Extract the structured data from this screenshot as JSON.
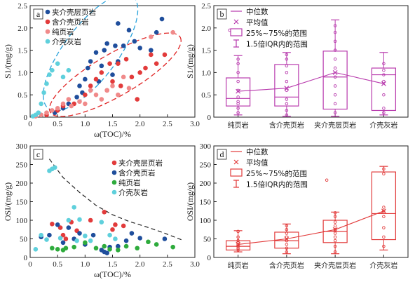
{
  "chart_data": [
    {
      "id": "a",
      "type": "scatter",
      "panel_label": "a",
      "xlabel": "ω(TOC)/%",
      "ylabel": "S1/(mg/g)",
      "xlim": [
        0,
        3.0
      ],
      "ylim": [
        0,
        2.5
      ],
      "xticks": [
        "0",
        "0.5",
        "1.0",
        "1.5",
        "2.0",
        "2.5",
        "3.0"
      ],
      "yticks": [
        "0",
        "0.5",
        "1.0",
        "1.5",
        "2.0",
        "2.5"
      ],
      "legend_position": "top-left",
      "series": [
        {
          "name": "夹介壳层页岩",
          "color": "#1f4e9c",
          "points": [
            [
              0.2,
              0.05
            ],
            [
              0.45,
              0.1
            ],
            [
              0.6,
              0.2
            ],
            [
              0.7,
              0.3
            ],
            [
              0.85,
              0.45
            ],
            [
              0.9,
              0.7
            ],
            [
              1.0,
              0.85
            ],
            [
              1.05,
              1.1
            ],
            [
              1.1,
              1.25
            ],
            [
              1.2,
              1.45
            ],
            [
              1.3,
              1.15
            ],
            [
              1.35,
              1.5
            ],
            [
              1.4,
              1.65
            ],
            [
              1.5,
              0.95
            ],
            [
              1.55,
              1.6
            ],
            [
              1.6,
              1.25
            ],
            [
              1.7,
              1.6
            ],
            [
              1.8,
              1.95
            ],
            [
              1.9,
              1.7
            ],
            [
              2.0,
              1.55
            ],
            [
              2.2,
              1.5
            ],
            [
              2.3,
              1.9
            ],
            [
              2.4,
              2.2
            ],
            [
              1.6,
              2.1
            ],
            [
              1.25,
              0.8
            ],
            [
              0.95,
              0.55
            ]
          ]
        },
        {
          "name": "含介壳页岩",
          "color": "#e23b3b",
          "points": [
            [
              0.3,
              0.05
            ],
            [
              0.5,
              0.15
            ],
            [
              0.6,
              0.25
            ],
            [
              0.8,
              0.3
            ],
            [
              1.0,
              0.5
            ],
            [
              1.1,
              0.7
            ],
            [
              1.2,
              0.85
            ],
            [
              1.3,
              1.0
            ],
            [
              1.45,
              1.2
            ],
            [
              1.5,
              0.8
            ],
            [
              1.6,
              1.2
            ],
            [
              1.75,
              1.3
            ],
            [
              1.85,
              0.9
            ],
            [
              2.0,
              1.0
            ],
            [
              2.1,
              1.1
            ],
            [
              2.2,
              1.4
            ],
            [
              2.3,
              1.2
            ],
            [
              2.45,
              1.4
            ],
            [
              1.4,
              0.6
            ],
            [
              1.65,
              0.7
            ],
            [
              1.95,
              0.4
            ]
          ]
        },
        {
          "name": "纯页岩",
          "color": "#f08a8a",
          "points": [
            [
              0.1,
              0.02
            ],
            [
              0.2,
              0.05
            ],
            [
              0.3,
              0.1
            ],
            [
              0.4,
              0.15
            ],
            [
              0.5,
              0.2
            ],
            [
              0.6,
              0.3
            ],
            [
              0.7,
              0.4
            ],
            [
              0.75,
              0.25
            ],
            [
              0.9,
              0.35
            ],
            [
              1.0,
              0.3
            ],
            [
              1.1,
              0.6
            ],
            [
              1.2,
              0.5
            ],
            [
              1.3,
              0.4
            ],
            [
              1.4,
              0.6
            ],
            [
              1.5,
              0.7
            ],
            [
              1.6,
              0.5
            ],
            [
              1.7,
              0.9
            ],
            [
              1.8,
              0.65
            ],
            [
              2.2,
              1.8
            ],
            [
              2.6,
              1.9
            ]
          ]
        },
        {
          "name": "介壳灰岩",
          "color": "#5fd0dc",
          "points": [
            [
              0.05,
              0.02
            ],
            [
              0.1,
              0.05
            ],
            [
              0.15,
              0.1
            ],
            [
              0.2,
              0.3
            ],
            [
              0.25,
              0.55
            ],
            [
              0.3,
              0.75
            ],
            [
              0.35,
              0.95
            ],
            [
              0.4,
              1.05
            ],
            [
              0.5,
              1.2
            ],
            [
              0.6,
              0.9
            ],
            [
              0.7,
              1.05
            ]
          ]
        }
      ]
    },
    {
      "id": "b",
      "type": "box",
      "panel_label": "b",
      "xlabel": "",
      "ylabel": "S1/(mg/g)",
      "ylim": [
        0,
        2.5
      ],
      "yticks": [
        "0",
        "0.5",
        "1.0",
        "1.5",
        "2.0",
        "2.5"
      ],
      "color": "#b83aad",
      "categories": [
        "纯页岩",
        "含介壳页岩",
        "夹介壳层页岩",
        "介壳灰岩"
      ],
      "boxes": [
        {
          "whisker_low": 0.05,
          "q1": 0.25,
          "median": 0.42,
          "q3": 0.88,
          "whisker_high": 1.38,
          "mean": 0.58,
          "points": [
            0.1,
            0.2,
            0.3,
            0.35,
            0.45,
            0.6,
            0.8,
            1.0,
            1.2,
            1.3
          ],
          "outliers": [
            1.95
          ]
        },
        {
          "whisker_low": 0.02,
          "q1": 0.25,
          "median": 0.45,
          "q3": 1.18,
          "whisker_high": 1.45,
          "mean": 0.65,
          "points": [
            0.05,
            0.15,
            0.3,
            0.4,
            0.6,
            0.8,
            1.0,
            1.15,
            1.3,
            1.4
          ],
          "outliers": []
        },
        {
          "whisker_low": 0.02,
          "q1": 0.18,
          "median": 0.9,
          "q3": 1.48,
          "whisker_high": 2.18,
          "mean": 1.0,
          "points": [
            0.1,
            0.3,
            0.5,
            0.7,
            0.9,
            1.1,
            1.3,
            1.5,
            1.7,
            1.9,
            2.05
          ],
          "outliers": []
        },
        {
          "whisker_low": 0.05,
          "q1": 0.15,
          "median": 0.95,
          "q3": 1.1,
          "whisker_high": 1.45,
          "mean": 0.75,
          "points": [
            0.1,
            0.2,
            0.5,
            0.8,
            0.95,
            1.05,
            1.2
          ],
          "outliers": []
        }
      ],
      "legend": [
        "中位数",
        "平均值",
        "25%~75%的范围",
        "1.5倍IQR内的范围"
      ],
      "legend_position": "top-left"
    },
    {
      "id": "c",
      "type": "scatter",
      "panel_label": "c",
      "xlabel": "ω(TOC)/%",
      "ylabel": "OSI/(mg/g)",
      "xlim": [
        0,
        3.0
      ],
      "ylim": [
        0,
        300
      ],
      "xticks": [
        "0",
        "0.5",
        "1.0",
        "1.5",
        "2.0",
        "2.5",
        "3.0"
      ],
      "yticks": [
        "0",
        "50",
        "100",
        "150",
        "200",
        "250",
        "300"
      ],
      "legend_position": "top-right",
      "boundary_curve": [
        [
          0.35,
          265
        ],
        [
          0.6,
          215
        ],
        [
          0.9,
          175
        ],
        [
          1.2,
          140
        ],
        [
          1.5,
          115
        ],
        [
          1.8,
          97
        ],
        [
          2.1,
          83
        ],
        [
          2.4,
          68
        ],
        [
          2.8,
          45
        ]
      ],
      "series": [
        {
          "name": "夹介壳层页岩",
          "color": "#e23b3b",
          "points": [
            [
              0.4,
              90
            ],
            [
              0.55,
              80
            ],
            [
              0.6,
              60
            ],
            [
              0.65,
              50
            ],
            [
              0.75,
              95
            ],
            [
              0.85,
              72
            ],
            [
              1.1,
              100
            ],
            [
              1.35,
              122
            ],
            [
              1.5,
              75
            ],
            [
              1.55,
              88
            ],
            [
              1.7,
              85
            ]
          ]
        },
        {
          "name": "含介壳页岩",
          "color": "#1f4e9c",
          "points": [
            [
              0.2,
              55
            ],
            [
              0.35,
              60
            ],
            [
              0.5,
              88
            ],
            [
              0.6,
              40
            ],
            [
              0.7,
              80
            ],
            [
              0.8,
              50
            ],
            [
              0.9,
              65
            ],
            [
              1.0,
              35
            ],
            [
              1.15,
              60
            ],
            [
              1.3,
              20
            ],
            [
              1.35,
              15
            ],
            [
              1.4,
              12
            ],
            [
              1.45,
              28
            ],
            [
              1.6,
              30
            ],
            [
              1.75,
              45
            ],
            [
              1.85,
              65
            ],
            [
              2.0,
              52
            ],
            [
              2.45,
              50
            ]
          ]
        },
        {
          "name": "纯页岩",
          "color": "#2eab3c",
          "points": [
            [
              0.4,
              25
            ],
            [
              0.5,
              22
            ],
            [
              0.6,
              20
            ],
            [
              0.65,
              25
            ],
            [
              0.8,
              28
            ],
            [
              1.0,
              40
            ],
            [
              1.2,
              25
            ],
            [
              1.35,
              30
            ],
            [
              1.45,
              22
            ],
            [
              1.6,
              20
            ],
            [
              1.75,
              30
            ],
            [
              1.95,
              25
            ],
            [
              2.15,
              42
            ],
            [
              2.3,
              35
            ],
            [
              2.6,
              28
            ]
          ]
        },
        {
          "name": "介壳灰岩",
          "color": "#5fd0dc",
          "points": [
            [
              0.1,
              22
            ],
            [
              0.2,
              60
            ],
            [
              0.3,
              48
            ],
            [
              0.35,
              233
            ],
            [
              0.4,
              238
            ],
            [
              0.45,
              242
            ],
            [
              0.55,
              52
            ],
            [
              0.7,
              100
            ],
            [
              0.8,
              135
            ],
            [
              0.85,
              45
            ],
            [
              0.9,
              102
            ],
            [
              1.0,
              58
            ],
            [
              1.1,
              45
            ],
            [
              1.3,
              95
            ],
            [
              1.45,
              60
            ],
            [
              1.55,
              50
            ]
          ]
        }
      ]
    },
    {
      "id": "d",
      "type": "box",
      "panel_label": "d",
      "xlabel": "",
      "ylabel": "OSI/(mg/g)",
      "ylim": [
        0,
        300
      ],
      "yticks": [
        "0",
        "50",
        "100",
        "150",
        "200",
        "250",
        "300"
      ],
      "color": "#e23b3b",
      "categories": [
        "纯页岩",
        "含介壳页岩",
        "夹介壳层页岩",
        "介壳灰岩"
      ],
      "boxes": [
        {
          "whisker_low": 15,
          "q1": 20,
          "median": 30,
          "q3": 45,
          "whisker_high": 72,
          "mean": 35,
          "points": [
            20,
            25,
            30,
            35,
            40,
            45,
            55,
            70
          ],
          "outliers": []
        },
        {
          "whisker_low": 10,
          "q1": 25,
          "median": 45,
          "q3": 68,
          "whisker_high": 90,
          "mean": 50,
          "points": [
            15,
            25,
            35,
            45,
            55,
            65,
            75,
            85
          ],
          "outliers": []
        },
        {
          "whisker_low": 10,
          "q1": 40,
          "median": 70,
          "q3": 100,
          "whisker_high": 122,
          "mean": 75,
          "points": [
            15,
            30,
            45,
            55,
            65,
            75,
            85,
            95,
            110,
            120
          ],
          "outliers": [
            208
          ]
        },
        {
          "whisker_low": 20,
          "q1": 48,
          "median": 118,
          "q3": 230,
          "whisker_high": 245,
          "mean": 125,
          "points": [
            30,
            55,
            80,
            110,
            125,
            135,
            225,
            238
          ],
          "outliers": []
        }
      ],
      "legend": [
        "中位数",
        "平均值",
        "25%~75%的范围",
        "1.5倍IQR内的范围"
      ],
      "legend_position": "top-left"
    }
  ]
}
